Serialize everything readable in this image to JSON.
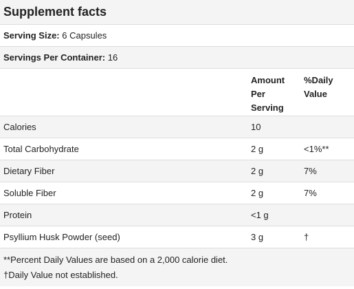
{
  "title": "Supplement facts",
  "serving_size": {
    "label": "Serving Size:",
    "value": "6 Capsules"
  },
  "servings_per_container": {
    "label": "Servings Per Container:",
    "value": "16"
  },
  "columns": {
    "amount": "Amount\nPer\nServing",
    "daily_value": "%Daily\nValue"
  },
  "rows": [
    {
      "name": "Calories",
      "amount": "10",
      "dv": ""
    },
    {
      "name": "Total Carbohydrate",
      "amount": "2 g",
      "dv": "<1%**"
    },
    {
      "name": "Dietary Fiber",
      "amount": "2 g",
      "dv": "7%"
    },
    {
      "name": "Soluble Fiber",
      "amount": "2 g",
      "dv": "7%"
    },
    {
      "name": "Protein",
      "amount": "<1 g",
      "dv": ""
    },
    {
      "name": "Psyllium Husk Powder (seed)",
      "amount": "3 g",
      "dv": "†"
    }
  ],
  "footnotes": [
    "**Percent Daily Values are based on a 2,000 calorie diet.",
    "†Daily Value not established."
  ]
}
